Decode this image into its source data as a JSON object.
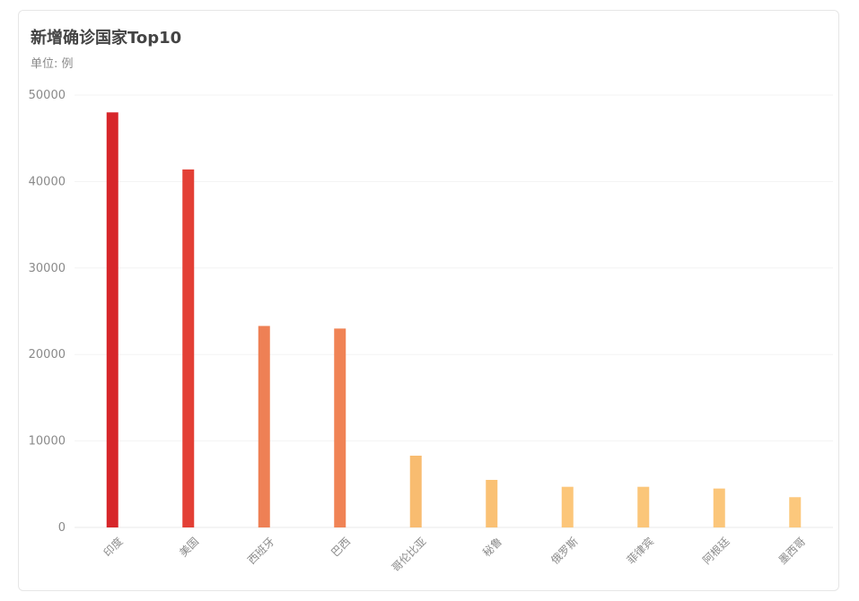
{
  "header": {
    "title": "新增确诊国家Top10",
    "subtitle": "单位: 例"
  },
  "chart_data": {
    "type": "bar",
    "title": "新增确诊国家Top10",
    "subtitle": "单位: 例",
    "categories": [
      "印度",
      "美国",
      "西班牙",
      "巴西",
      "哥伦比亚",
      "秘鲁",
      "俄罗斯",
      "菲律宾",
      "阿根廷",
      "墨西哥"
    ],
    "values": [
      48000,
      41400,
      23300,
      23000,
      8300,
      5500,
      4700,
      4700,
      4500,
      3500
    ],
    "yticks": [
      0,
      10000,
      20000,
      30000,
      40000,
      50000
    ],
    "ylim": [
      0,
      50000
    ],
    "grid": true,
    "bar_colors": [
      "#d7262a",
      "#e33f35",
      "#ee8055",
      "#f08355",
      "#f8bc70",
      "#fac174",
      "#fcc679",
      "#fbc679",
      "#fbc67a",
      "#fcc87c"
    ]
  }
}
